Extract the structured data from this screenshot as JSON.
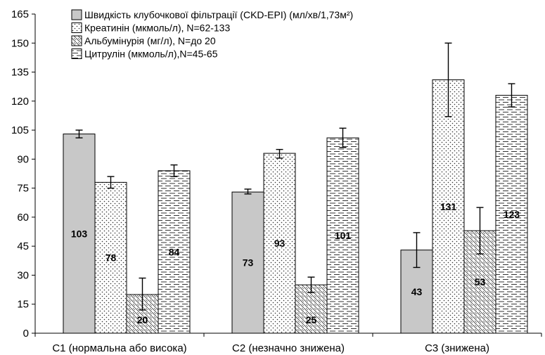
{
  "chart_data": {
    "type": "bar",
    "title": "",
    "xlabel": "",
    "ylabel": "",
    "ylim": [
      0,
      165
    ],
    "yticks": [
      0,
      15,
      30,
      45,
      60,
      75,
      90,
      105,
      120,
      135,
      150,
      165
    ],
    "grid": false,
    "legend_position": "top-center",
    "categories": [
      "C1 (нормальна або висока)",
      "C2 (незначно знижена)",
      "C3 (знижена)"
    ],
    "series": [
      {
        "name": "Швидкість клубочкової фільтрації (CKD-EPI) (мл/хв/1,73м²)",
        "values": [
          103,
          73,
          43
        ],
        "error_low": [
          101,
          72,
          34
        ],
        "error_high": [
          105,
          74.5,
          52
        ],
        "fill": "#c8c8c8",
        "pattern": "solid"
      },
      {
        "name": "Креатинін (мкмоль/л), N=62-133",
        "values": [
          78,
          93,
          131
        ],
        "error_low": [
          75,
          90.5,
          112
        ],
        "error_high": [
          81,
          95,
          150
        ],
        "fill": "#ffffff",
        "pattern": "dots"
      },
      {
        "name": "Альбумінурія (мг/л), N=до 20",
        "values": [
          20,
          25,
          53
        ],
        "error_low": [
          12,
          21,
          41
        ],
        "error_high": [
          28.5,
          29,
          65
        ],
        "fill": "#ffffff",
        "pattern": "diagonal"
      },
      {
        "name": "Цитрулін (мкмоль/л),N=45-65",
        "values": [
          84,
          101,
          123
        ],
        "error_low": [
          81,
          96,
          117
        ],
        "error_high": [
          87,
          106,
          129
        ],
        "fill": "#ffffff",
        "pattern": "dashes"
      }
    ]
  }
}
